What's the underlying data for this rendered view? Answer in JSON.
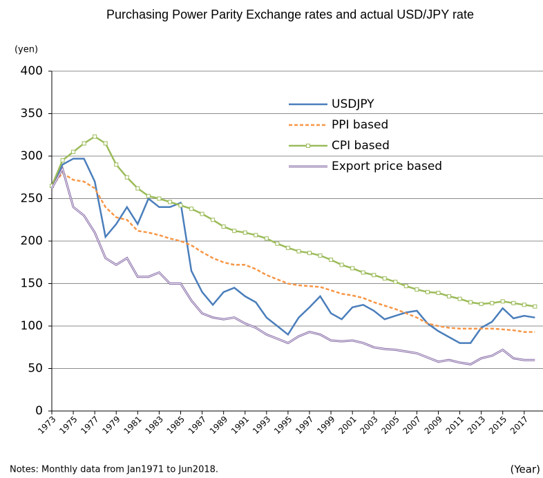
{
  "chart_data": {
    "type": "line",
    "title": "Purchasing Power Parity Exchange rates and actual USD/JPY rate",
    "y_label": "(yen)",
    "x_label": "(Year)",
    "note": "Notes: Monthly data from Jan1971 to Jun2018.",
    "x": [
      1973,
      1974,
      1975,
      1976,
      1977,
      1978,
      1979,
      1980,
      1981,
      1982,
      1983,
      1984,
      1985,
      1986,
      1987,
      1988,
      1989,
      1990,
      1991,
      1992,
      1993,
      1994,
      1995,
      1996,
      1997,
      1998,
      1999,
      2000,
      2001,
      2002,
      2003,
      2004,
      2005,
      2006,
      2007,
      2008,
      2009,
      2010,
      2011,
      2012,
      2013,
      2014,
      2015,
      2016,
      2017,
      2018
    ],
    "series": [
      {
        "name": "USDJPY",
        "color": "#4a7ebb",
        "style": "solid",
        "values": [
          265,
          290,
          297,
          297,
          270,
          205,
          220,
          240,
          220,
          250,
          240,
          240,
          245,
          165,
          140,
          125,
          140,
          145,
          135,
          128,
          110,
          100,
          90,
          110,
          122,
          135,
          115,
          108,
          122,
          125,
          118,
          108,
          112,
          116,
          118,
          103,
          94,
          87,
          80,
          80,
          98,
          105,
          121,
          109,
          112,
          110
        ]
      },
      {
        "name": "PPI based",
        "color": "#f79646",
        "style": "dashed",
        "values": [
          265,
          280,
          272,
          270,
          262,
          240,
          228,
          225,
          212,
          210,
          207,
          203,
          200,
          195,
          187,
          180,
          175,
          172,
          172,
          167,
          160,
          155,
          150,
          148,
          147,
          146,
          142,
          138,
          136,
          133,
          128,
          124,
          120,
          115,
          110,
          103,
          100,
          98,
          97,
          97,
          97,
          97,
          96,
          95,
          93,
          93
        ]
      },
      {
        "name": "CPI based",
        "color": "#9bbb59",
        "style": "solid",
        "marker": "square",
        "values": [
          265,
          295,
          305,
          315,
          323,
          315,
          290,
          275,
          262,
          253,
          250,
          246,
          242,
          238,
          232,
          225,
          217,
          212,
          210,
          207,
          203,
          197,
          192,
          188,
          186,
          183,
          178,
          172,
          168,
          163,
          160,
          156,
          152,
          147,
          143,
          140,
          139,
          135,
          132,
          128,
          126,
          127,
          129,
          127,
          125,
          123
        ]
      },
      {
        "name": "Export price based",
        "color": "#8064a2",
        "style": "double",
        "values": [
          262,
          285,
          240,
          230,
          210,
          180,
          172,
          180,
          158,
          158,
          163,
          150,
          150,
          130,
          115,
          110,
          108,
          110,
          103,
          98,
          90,
          85,
          80,
          88,
          93,
          90,
          83,
          82,
          83,
          80,
          75,
          73,
          72,
          70,
          68,
          63,
          58,
          60,
          57,
          55,
          62,
          65,
          72,
          62,
          60,
          60
        ]
      }
    ],
    "xlim": [
      1973,
      2018.75
    ],
    "xticks": [
      1973,
      1975,
      1977,
      1979,
      1981,
      1983,
      1985,
      1987,
      1989,
      1991,
      1993,
      1995,
      1997,
      1999,
      2001,
      2003,
      2005,
      2007,
      2009,
      2011,
      2013,
      2015,
      2017
    ],
    "ylim": [
      0,
      400
    ],
    "yticks": [
      0,
      50,
      100,
      150,
      200,
      250,
      300,
      350,
      400
    ],
    "grid": true,
    "legend": "top-right"
  }
}
